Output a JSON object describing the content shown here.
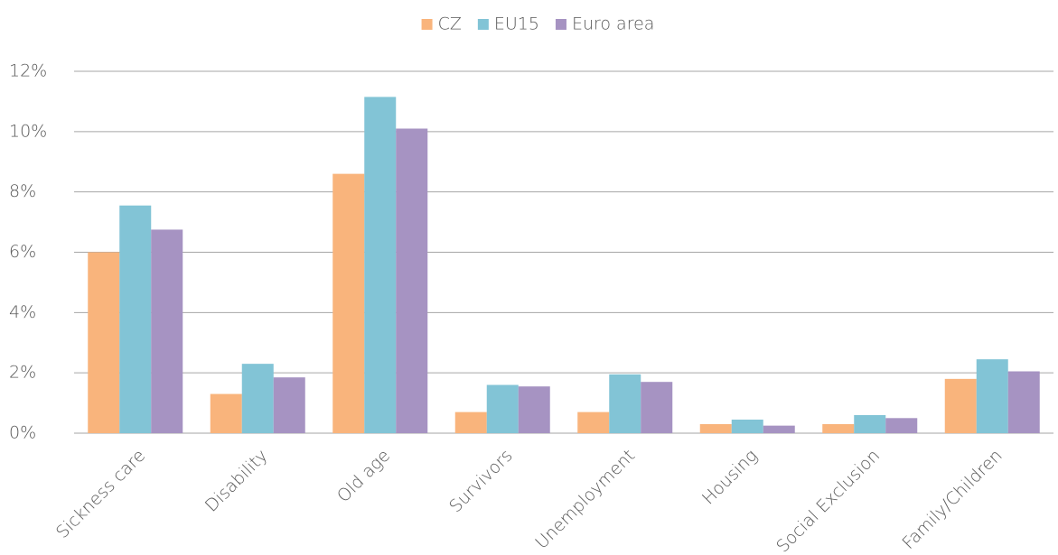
{
  "chart_data": {
    "type": "bar",
    "categories": [
      "Sickness care",
      "Disability",
      "Old age",
      "Survivors",
      "Unemployment",
      "Housing",
      "Social Exclusion",
      "Family/Children"
    ],
    "series": [
      {
        "name": "CZ",
        "color": "#f9b47c",
        "values": [
          6.0,
          1.3,
          8.6,
          0.7,
          0.7,
          0.3,
          0.3,
          1.8
        ]
      },
      {
        "name": "EU15",
        "color": "#82c4d6",
        "values": [
          7.55,
          2.3,
          11.15,
          1.6,
          1.95,
          0.45,
          0.6,
          2.45
        ]
      },
      {
        "name": "Euro area",
        "color": "#a693c2",
        "values": [
          6.75,
          1.85,
          10.1,
          1.55,
          1.7,
          0.25,
          0.5,
          2.05
        ]
      }
    ],
    "ylim": [
      0,
      12
    ],
    "yticks": [
      {
        "value": 0,
        "label": "0%"
      },
      {
        "value": 2,
        "label": "2%"
      },
      {
        "value": 4,
        "label": "4%"
      },
      {
        "value": 6,
        "label": "6%"
      },
      {
        "value": 8,
        "label": "8%"
      },
      {
        "value": 10,
        "label": "10%"
      },
      {
        "value": 12,
        "label": "12%"
      }
    ],
    "grid": true,
    "legend": "top"
  }
}
